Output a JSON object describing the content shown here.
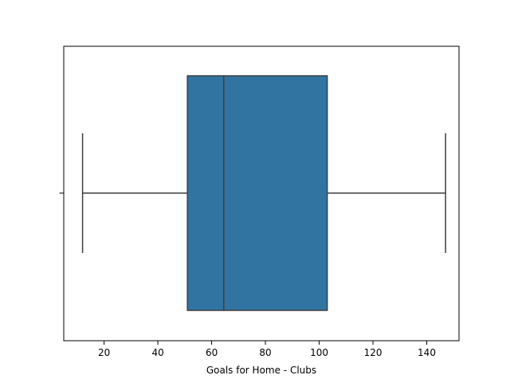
{
  "chart_data": {
    "type": "boxplot",
    "orientation": "horizontal",
    "xlabel": "Goals for Home - Clubs",
    "ylabel": "",
    "xlim": [
      5,
      152
    ],
    "x_ticks": [
      20,
      40,
      60,
      80,
      100,
      120,
      140
    ],
    "grid": false,
    "series": [
      {
        "whisker_low": 12,
        "q1": 51,
        "median": 64.5,
        "q3": 103,
        "whisker_high": 147
      }
    ],
    "colors": {
      "box_fill": "#3274a1",
      "line": "#3f3f3f"
    }
  }
}
